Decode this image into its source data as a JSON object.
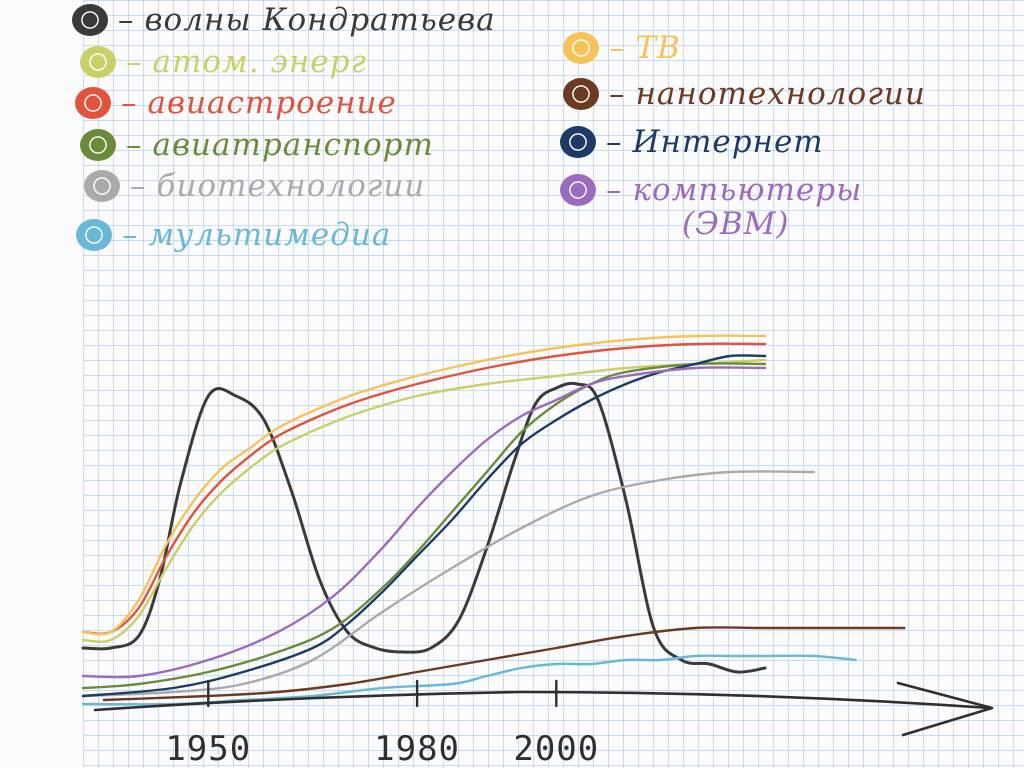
{
  "chart_data": {
    "type": "line",
    "title": "",
    "xlabel": "",
    "ylabel": "",
    "x_ticks": [
      1950,
      1980,
      2000
    ],
    "x_tick_labels": [
      "1950",
      "1980",
      "2000"
    ],
    "xlim": [
      1932,
      2058
    ],
    "ylim": [
      0,
      100
    ],
    "grid": true,
    "legend_position": "top",
    "series": [
      {
        "name": "волны Кондратьева",
        "color": "#3a3a3a",
        "x": [
          1932,
          1936,
          1940,
          1943,
          1946,
          1950,
          1954,
          1958,
          1962,
          1966,
          1970,
          1974,
          1978,
          1982,
          1986,
          1990,
          1994,
          1997,
          2000,
          2003,
          2006,
          2010,
          2014,
          2018,
          2022,
          2026,
          2030
        ],
        "y": [
          13,
          13,
          16,
          30,
          54,
          76,
          76,
          70,
          52,
          30,
          17,
          13,
          12,
          13,
          20,
          38,
          60,
          74,
          78,
          79,
          75,
          50,
          18,
          10,
          9,
          7,
          8
        ]
      },
      {
        "name": "атом. энерг",
        "color": "#c8d066",
        "x": [
          1932,
          1936,
          1940,
          1944,
          1948,
          1952,
          1956,
          1960,
          1966,
          1972,
          1980,
          1990,
          2000,
          2010,
          2020,
          2030
        ],
        "y": [
          15,
          15,
          21,
          33,
          44,
          52,
          58,
          63,
          68,
          72,
          76,
          79,
          81,
          83,
          84,
          85
        ]
      },
      {
        "name": "авиастроение",
        "color": "#e0533d",
        "x": [
          1932,
          1936,
          1940,
          1944,
          1948,
          1952,
          1956,
          1960,
          1966,
          1972,
          1980,
          1990,
          2000,
          2010,
          2020,
          2030
        ],
        "y": [
          17,
          17,
          23,
          36,
          47,
          55,
          61,
          66,
          71,
          75,
          79,
          83,
          86,
          88,
          89,
          89
        ]
      },
      {
        "name": "авиатранспорт",
        "color": "#6b8a3a",
        "x": [
          1932,
          1940,
          1950,
          1960,
          1968,
          1975,
          1980,
          1985,
          1990,
          1995,
          2000,
          2005,
          2010,
          2020,
          2030
        ],
        "y": [
          3,
          4,
          7,
          12,
          18,
          28,
          37,
          47,
          57,
          67,
          74,
          79,
          82,
          84,
          84
        ]
      },
      {
        "name": "биотехнологии",
        "color": "#aaaaaa",
        "x": [
          1932,
          1945,
          1955,
          1965,
          1975,
          1985,
          1995,
          2005,
          2015,
          2025,
          2037
        ],
        "y": [
          1,
          2,
          4,
          10,
          22,
          33,
          43,
          51,
          55,
          57,
          57
        ]
      },
      {
        "name": "мультимедиа",
        "color": "#6ab8d8",
        "x": [
          1932,
          1945,
          1955,
          1965,
          1975,
          1985,
          1990,
          1995,
          2000,
          2005,
          2010,
          2015,
          2020,
          2025,
          2030,
          2037,
          2043
        ],
        "y": [
          -1,
          -1,
          0,
          1,
          3,
          4,
          6,
          8,
          9,
          9,
          10,
          10,
          11,
          11,
          11,
          11,
          10
        ]
      },
      {
        "name": "ТВ",
        "color": "#f5c35a",
        "x": [
          1932,
          1936,
          1940,
          1944,
          1948,
          1952,
          1956,
          1960,
          1966,
          1972,
          1980,
          1990,
          2000,
          2010,
          2020,
          2030
        ],
        "y": [
          17,
          17,
          25,
          39,
          50,
          58,
          63,
          68,
          73,
          77,
          81,
          85,
          88,
          90,
          91,
          91
        ]
      },
      {
        "name": "нанотехнологии",
        "color": "#6b3a22",
        "x": [
          1935,
          1950,
          1960,
          1970,
          1980,
          1990,
          2000,
          2010,
          2020,
          2030,
          2040,
          2050
        ],
        "y": [
          0,
          1,
          2,
          4,
          7,
          10,
          13,
          16,
          18,
          18,
          18,
          18
        ]
      },
      {
        "name": "Интернет",
        "color": "#1e3a66",
        "x": [
          1932,
          1945,
          1955,
          1965,
          1970,
          1975,
          1980,
          1985,
          1990,
          1995,
          2000,
          2005,
          2010,
          2015,
          2020,
          2025,
          2030
        ],
        "y": [
          1,
          3,
          7,
          13,
          19,
          27,
          36,
          45,
          55,
          64,
          70,
          75,
          79,
          82,
          84,
          86,
          86
        ]
      },
      {
        "name": "компьютеры (ЭВМ)",
        "color": "#9b6bbd",
        "x": [
          1932,
          1940,
          1950,
          1960,
          1968,
          1975,
          1980,
          1985,
          1990,
          1995,
          2000,
          2005,
          2010,
          2020,
          2030
        ],
        "y": [
          6,
          6,
          10,
          17,
          26,
          38,
          48,
          57,
          65,
          71,
          75,
          79,
          81,
          83,
          83
        ]
      }
    ]
  },
  "legend": {
    "dash": "–",
    "left": [
      {
        "label": "волны Кондратьева",
        "color": "#3a3a3a"
      },
      {
        "label": "атом. энерг",
        "color": "#c8d066"
      },
      {
        "label": "авиастроение",
        "color": "#e0533d"
      },
      {
        "label": "авиатранспорт",
        "color": "#6b8a3a"
      },
      {
        "label": "биотехнологии",
        "color": "#aaaaaa"
      },
      {
        "label": "мультимедиа",
        "color": "#6ab8d8"
      }
    ],
    "right": [
      {
        "label": "ТВ",
        "color": "#f5c35a"
      },
      {
        "label": "нанотехнологии",
        "color": "#6b3a22"
      },
      {
        "label": "Интернет",
        "color": "#1e3a66"
      },
      {
        "label": "компьютеры",
        "label2": "(ЭВМ)",
        "color": "#9b6bbd"
      }
    ]
  }
}
